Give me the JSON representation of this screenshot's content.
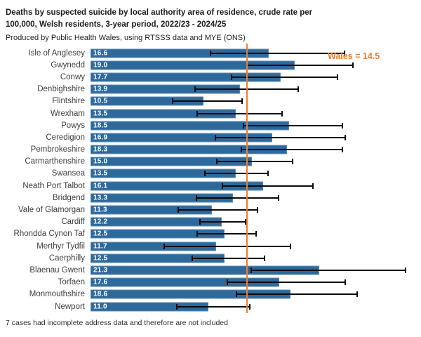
{
  "header": {
    "title_line1": "Deaths by suspected suicide by local authority area of residence, crude rate per",
    "title_line2": "100,000, Welsh residents, 3-year period, 2022/23 - 2024/25",
    "subtitle": "Produced by Public Health Wales, using RTSSS data and MYE (ONS)"
  },
  "chart_data": {
    "type": "bar",
    "orientation": "horizontal",
    "title": "Deaths by suspected suicide by local authority area of residence, crude rate per 100,000, Welsh residents, 3-year period, 2022/23 - 2024/25",
    "categories": [
      "Isle of Anglesey",
      "Gwynedd",
      "Conwy",
      "Denbighshire",
      "Flintshire",
      "Wrexham",
      "Powys",
      "Ceredigion",
      "Pembrokeshire",
      "Carmarthenshire",
      "Swansea",
      "Neath Port Talbot",
      "Bridgend",
      "Vale of Glamorgan",
      "Cardiff",
      "Rhondda Cynon Taf",
      "Merthyr Tydfil",
      "Caerphilly",
      "Blaenau Gwent",
      "Torfaen",
      "Monmouthshire",
      "Newport"
    ],
    "values": [
      16.6,
      19.0,
      17.7,
      13.9,
      10.5,
      13.5,
      18.5,
      16.9,
      18.3,
      15.0,
      13.5,
      16.1,
      13.3,
      11.3,
      12.2,
      12.5,
      11.7,
      12.5,
      21.3,
      17.6,
      18.6,
      11.0
    ],
    "ci_low": [
      11.1,
      14.5,
      13.1,
      9.7,
      7.6,
      9.9,
      14.2,
      11.6,
      14.0,
      11.7,
      10.6,
      12.2,
      9.8,
      8.1,
      10.1,
      9.9,
      6.8,
      9.4,
      14.9,
      12.7,
      13.5,
      8.0
    ],
    "ci_high": [
      23.7,
      24.5,
      23.1,
      19.4,
      14.2,
      17.9,
      23.5,
      23.8,
      23.5,
      18.9,
      16.6,
      20.8,
      17.6,
      15.6,
      14.5,
      15.5,
      18.7,
      16.3,
      29.4,
      23.8,
      24.9,
      14.9
    ],
    "reference_line": {
      "label": "Wales = 14.5",
      "value": 14.5,
      "color": "#ED7D31"
    },
    "xlim": [
      0,
      30.5
    ],
    "grid": false,
    "legend": "none",
    "bar_color": "#2E699B",
    "error_bar_color": "#0A0A0A",
    "value_label_color": "#FFFFFF"
  },
  "footnote": "7 cases had incomplete address data and therefore are not included"
}
